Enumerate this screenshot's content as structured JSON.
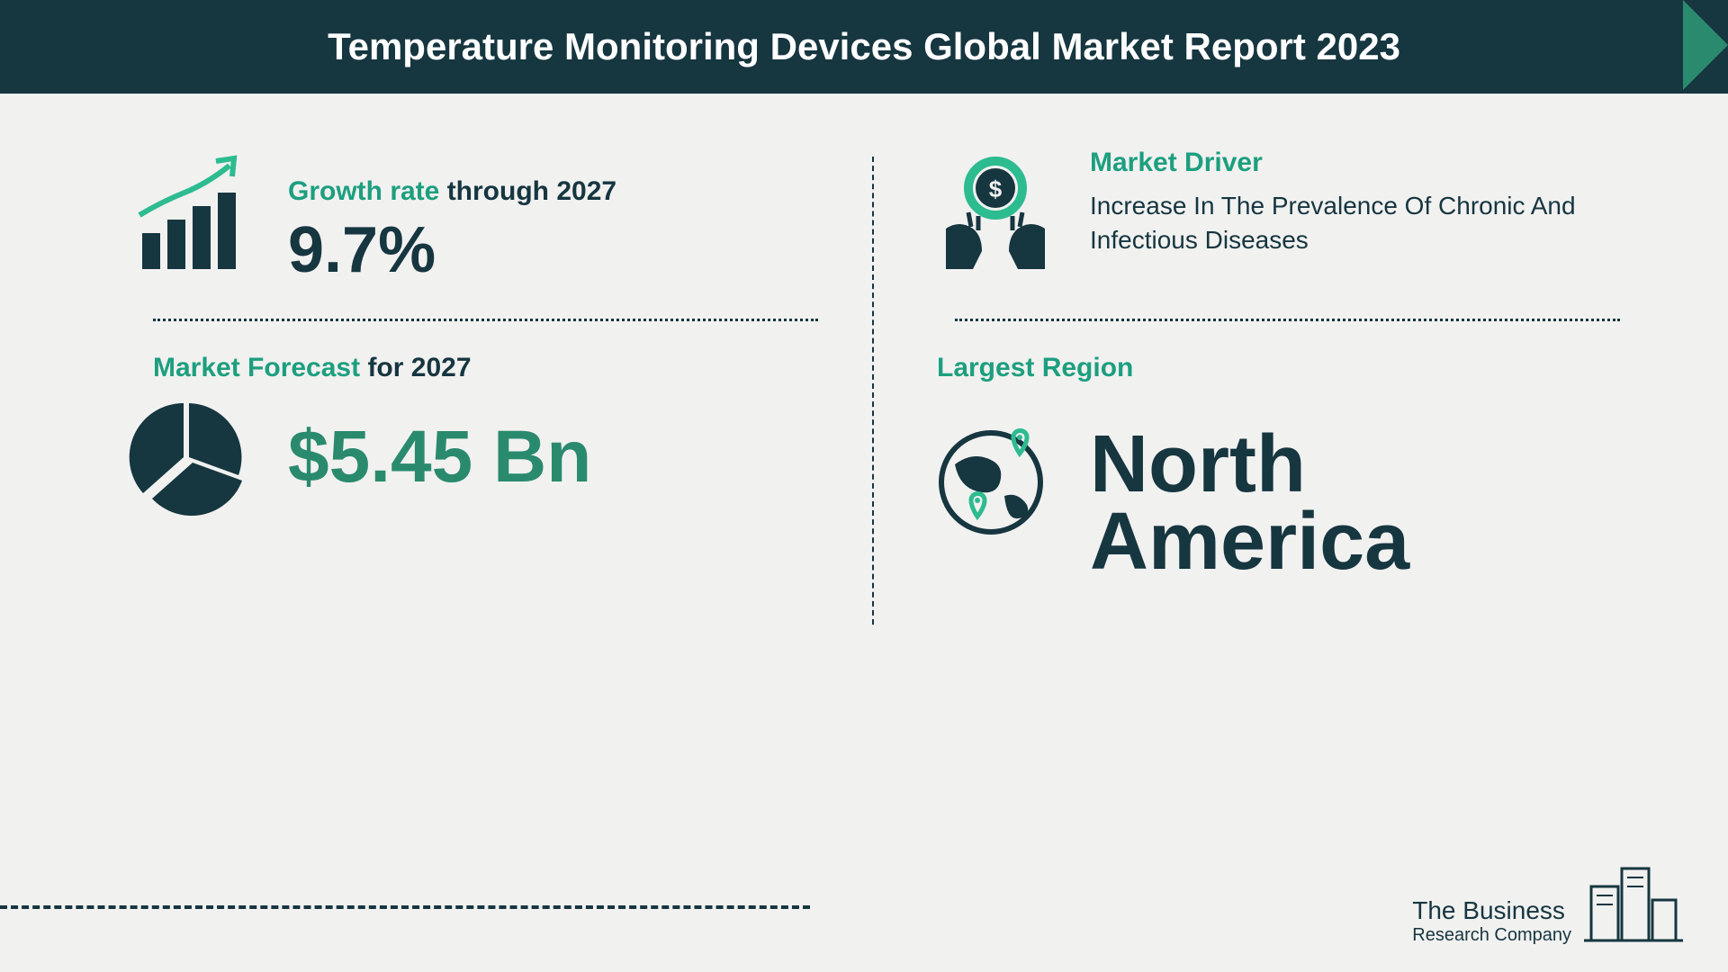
{
  "header": {
    "title": "Temperature Monitoring Devices Global Market Report 2023",
    "bg_color": "#163640",
    "text_color": "#ffffff",
    "arrow_color": "#2a8a6e"
  },
  "growth": {
    "label_colored": "Growth rate",
    "label_plain": " through 2027",
    "value": "9.7%",
    "icon_arrow_color": "#2dbb90",
    "icon_line_color": "#163640",
    "icon_bar_colors": [
      "#163640",
      "#163640",
      "#163640",
      "#163640"
    ]
  },
  "forecast": {
    "label_colored": "Market Forecast",
    "label_plain": " for 2027",
    "value": "$5.45 Bn",
    "icon_color": "#163640"
  },
  "driver": {
    "label": "Market Driver",
    "description": "Increase In The Prevalence Of Chronic And Infectious Diseases",
    "icon_hand_color": "#163640",
    "icon_ring_color": "#2dbb90",
    "icon_dollar_color": "#163640"
  },
  "region": {
    "label": "Largest Region",
    "value": "North America",
    "icon_globe_color": "#163640",
    "icon_pin_color": "#2dbb90"
  },
  "logo": {
    "line1": "The Business",
    "line2": "Research Company",
    "icon_color": "#163640"
  },
  "style": {
    "teal": "#1d9f7f",
    "green": "#2a8a6e",
    "dark": "#163640",
    "bg": "#f1f1f0",
    "value_fontsize_big": 72,
    "value_fontsize_region": 90,
    "label_fontsize": 30,
    "desc_fontsize": 28,
    "header_fontsize": 42
  }
}
